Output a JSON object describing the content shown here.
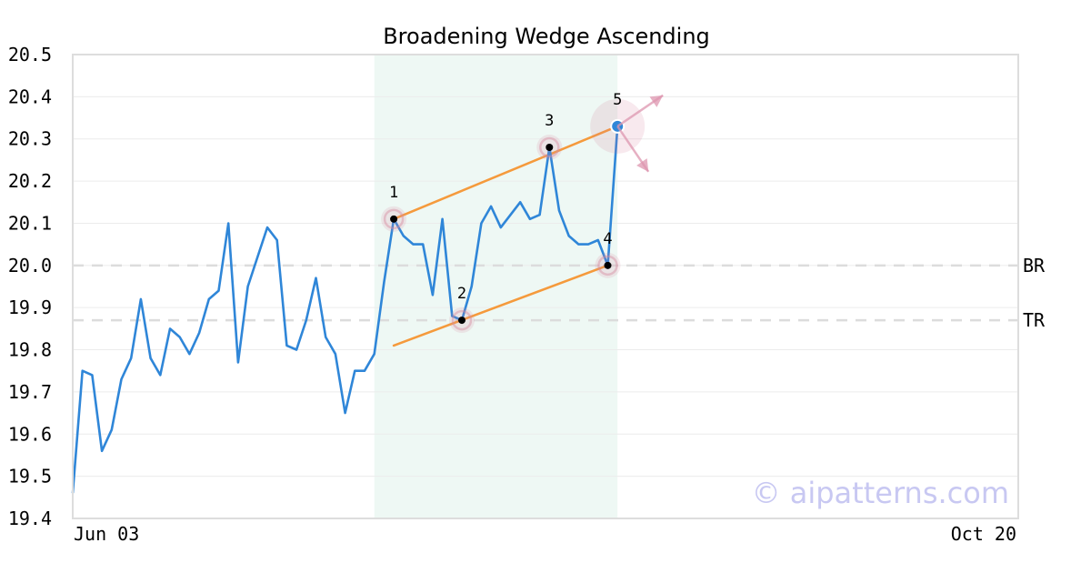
{
  "chart_data": {
    "type": "line",
    "title": "Broadening Wedge Ascending",
    "x_tick_labels": [
      "Jun 03",
      "Oct 20"
    ],
    "ylim": [
      19.4,
      20.5
    ],
    "y_ticks": [
      19.4,
      19.5,
      19.6,
      19.7,
      19.8,
      19.9,
      20.0,
      20.1,
      20.2,
      20.3,
      20.4,
      20.5
    ],
    "grid": "horizontal",
    "series": [
      {
        "values": [
          19.46,
          19.75,
          19.74,
          19.56,
          19.61,
          19.73,
          19.78,
          19.92,
          19.78,
          19.74,
          19.85,
          19.83,
          19.79,
          19.84,
          19.92,
          19.94,
          20.1,
          19.77,
          19.95,
          20.02,
          20.09,
          20.06,
          19.81,
          19.8,
          19.87,
          19.97,
          19.83,
          19.79,
          19.65,
          19.75,
          19.75,
          19.79,
          19.96,
          20.11,
          20.07,
          20.05,
          20.05,
          19.93,
          20.11,
          19.88,
          19.87,
          19.95,
          20.1,
          20.14,
          20.09,
          20.12,
          20.15,
          20.11,
          20.12,
          20.28,
          20.13,
          20.07,
          20.05,
          20.05,
          20.06,
          20.0,
          20.33
        ],
        "color": "#2f86d8"
      }
    ],
    "highlight_region": {
      "from_index": 31,
      "to_index": 56,
      "color": "#eef8f4"
    },
    "pivots": [
      {
        "label": "1",
        "index": 33,
        "value": 20.11
      },
      {
        "label": "2",
        "index": 40,
        "value": 19.87
      },
      {
        "label": "3",
        "index": 49,
        "value": 20.28
      },
      {
        "label": "4",
        "index": 55,
        "value": 20.0
      },
      {
        "label": "5",
        "index": 56,
        "value": 20.33
      }
    ],
    "trendlines": [
      {
        "name": "upper",
        "from": {
          "index": 33,
          "value": 20.11
        },
        "to": {
          "index": 56,
          "value": 20.33
        },
        "color": "#f59a3c"
      },
      {
        "name": "lower",
        "from": {
          "index": 33,
          "value": 19.81
        },
        "to": {
          "index": 55,
          "value": 20.0
        },
        "color": "#f59a3c"
      }
    ],
    "reference_lines": [
      {
        "label": "BR",
        "value": 20.0
      },
      {
        "label": "TR",
        "value": 19.87
      }
    ],
    "annotations": {
      "watermark": "© aipatterns.com"
    }
  }
}
